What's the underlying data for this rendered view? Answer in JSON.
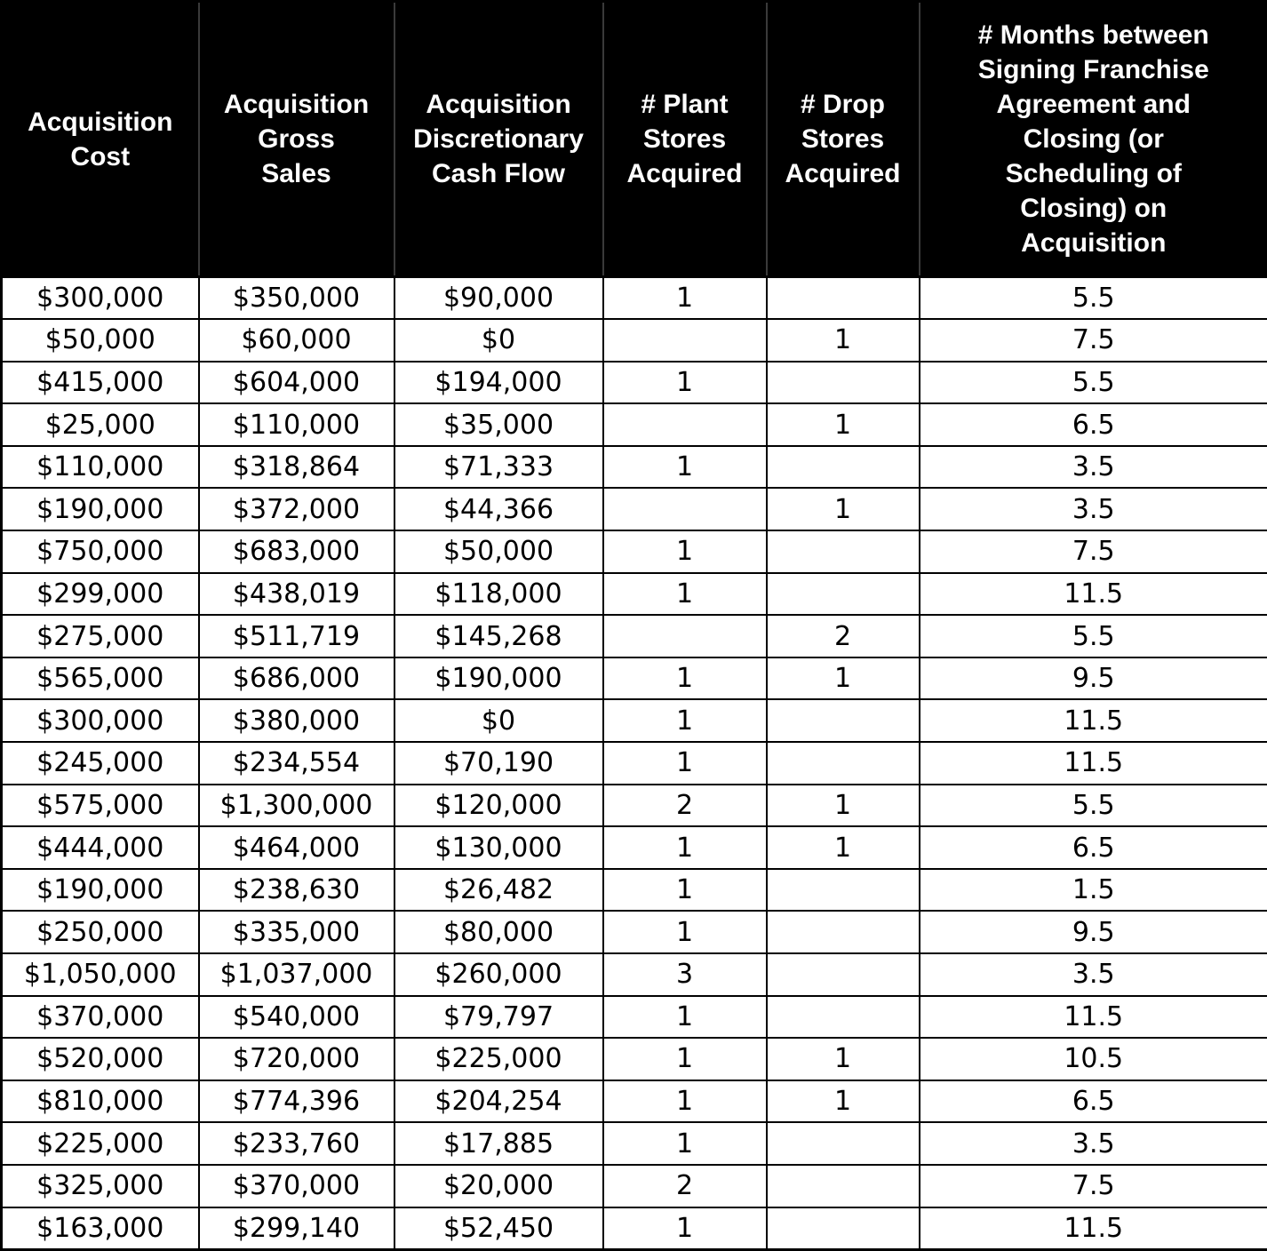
{
  "table": {
    "headers": [
      "Acquisition\nCost",
      "Acquisition\nGross\nSales",
      "Acquisition\nDiscretionary\nCash Flow",
      "# Plant\nStores\nAcquired",
      "# Drop\nStores\nAcquired",
      "# Months between\nSigning Franchise\nAgreement and\nClosing (or\nScheduling of\nClosing) on\nAcquisition"
    ],
    "rows": [
      [
        "$300,000",
        "$350,000",
        "$90,000",
        "1",
        "",
        "5.5"
      ],
      [
        "$50,000",
        "$60,000",
        "$0",
        "",
        "1",
        "7.5"
      ],
      [
        "$415,000",
        "$604,000",
        "$194,000",
        "1",
        "",
        "5.5"
      ],
      [
        "$25,000",
        "$110,000",
        "$35,000",
        "",
        "1",
        "6.5"
      ],
      [
        "$110,000",
        "$318,864",
        "$71,333",
        "1",
        "",
        "3.5"
      ],
      [
        "$190,000",
        "$372,000",
        "$44,366",
        "",
        "1",
        "3.5"
      ],
      [
        "$750,000",
        "$683,000",
        "$50,000",
        "1",
        "",
        "7.5"
      ],
      [
        "$299,000",
        "$438,019",
        "$118,000",
        "1",
        "",
        "11.5"
      ],
      [
        "$275,000",
        "$511,719",
        "$145,268",
        "",
        "2",
        "5.5"
      ],
      [
        "$565,000",
        "$686,000",
        "$190,000",
        "1",
        "1",
        "9.5"
      ],
      [
        "$300,000",
        "$380,000",
        "$0",
        "1",
        "",
        "11.5"
      ],
      [
        "$245,000",
        "$234,554",
        "$70,190",
        "1",
        "",
        "11.5"
      ],
      [
        "$575,000",
        "$1,300,000",
        "$120,000",
        "2",
        "1",
        "5.5"
      ],
      [
        "$444,000",
        "$464,000",
        "$130,000",
        "1",
        "1",
        "6.5"
      ],
      [
        "$190,000",
        "$238,630",
        "$26,482",
        "1",
        "",
        "1.5"
      ],
      [
        "$250,000",
        "$335,000",
        "$80,000",
        "1",
        "",
        "9.5"
      ],
      [
        "$1,050,000",
        "$1,037,000",
        "$260,000",
        "3",
        "",
        "3.5"
      ],
      [
        "$370,000",
        "$540,000",
        "$79,797",
        "1",
        "",
        "11.5"
      ],
      [
        "$520,000",
        "$720,000",
        "$225,000",
        "1",
        "1",
        "10.5"
      ],
      [
        "$810,000",
        "$774,396",
        "$204,254",
        "1",
        "1",
        "6.5"
      ],
      [
        "$225,000",
        "$233,760",
        "$17,885",
        "1",
        "",
        "3.5"
      ],
      [
        "$325,000",
        "$370,000",
        "$20,000",
        "2",
        "",
        "7.5"
      ],
      [
        "$163,000",
        "$299,140",
        "$52,450",
        "1",
        "",
        "11.5"
      ]
    ]
  },
  "colors": {
    "header_bg": "#000000",
    "header_text": "#ffffff",
    "border": "#000000",
    "cell_bg": "#ffffff",
    "cell_text": "#000000"
  },
  "chart_data": {
    "type": "table",
    "title": "",
    "columns": [
      "Acquisition Cost",
      "Acquisition Gross Sales",
      "Acquisition Discretionary Cash Flow",
      "# Plant Stores Acquired",
      "# Drop Stores Acquired",
      "# Months between Signing Franchise Agreement and Closing (or Scheduling of Closing) on Acquisition"
    ],
    "rows": [
      [
        300000,
        350000,
        90000,
        1,
        null,
        5.5
      ],
      [
        50000,
        60000,
        0,
        null,
        1,
        7.5
      ],
      [
        415000,
        604000,
        194000,
        1,
        null,
        5.5
      ],
      [
        25000,
        110000,
        35000,
        null,
        1,
        6.5
      ],
      [
        110000,
        318864,
        71333,
        1,
        null,
        3.5
      ],
      [
        190000,
        372000,
        44366,
        null,
        1,
        3.5
      ],
      [
        750000,
        683000,
        50000,
        1,
        null,
        7.5
      ],
      [
        299000,
        438019,
        118000,
        1,
        null,
        11.5
      ],
      [
        275000,
        511719,
        145268,
        null,
        2,
        5.5
      ],
      [
        565000,
        686000,
        190000,
        1,
        1,
        9.5
      ],
      [
        300000,
        380000,
        0,
        1,
        null,
        11.5
      ],
      [
        245000,
        234554,
        70190,
        1,
        null,
        11.5
      ],
      [
        575000,
        1300000,
        120000,
        2,
        1,
        5.5
      ],
      [
        444000,
        464000,
        130000,
        1,
        1,
        6.5
      ],
      [
        190000,
        238630,
        26482,
        1,
        null,
        1.5
      ],
      [
        250000,
        335000,
        80000,
        1,
        null,
        9.5
      ],
      [
        1050000,
        1037000,
        260000,
        3,
        null,
        3.5
      ],
      [
        370000,
        540000,
        79797,
        1,
        null,
        11.5
      ],
      [
        520000,
        720000,
        225000,
        1,
        1,
        10.5
      ],
      [
        810000,
        774396,
        204254,
        1,
        1,
        6.5
      ],
      [
        225000,
        233760,
        17885,
        1,
        null,
        3.5
      ],
      [
        325000,
        370000,
        20000,
        2,
        null,
        7.5
      ],
      [
        163000,
        299140,
        52450,
        1,
        null,
        11.5
      ]
    ]
  }
}
